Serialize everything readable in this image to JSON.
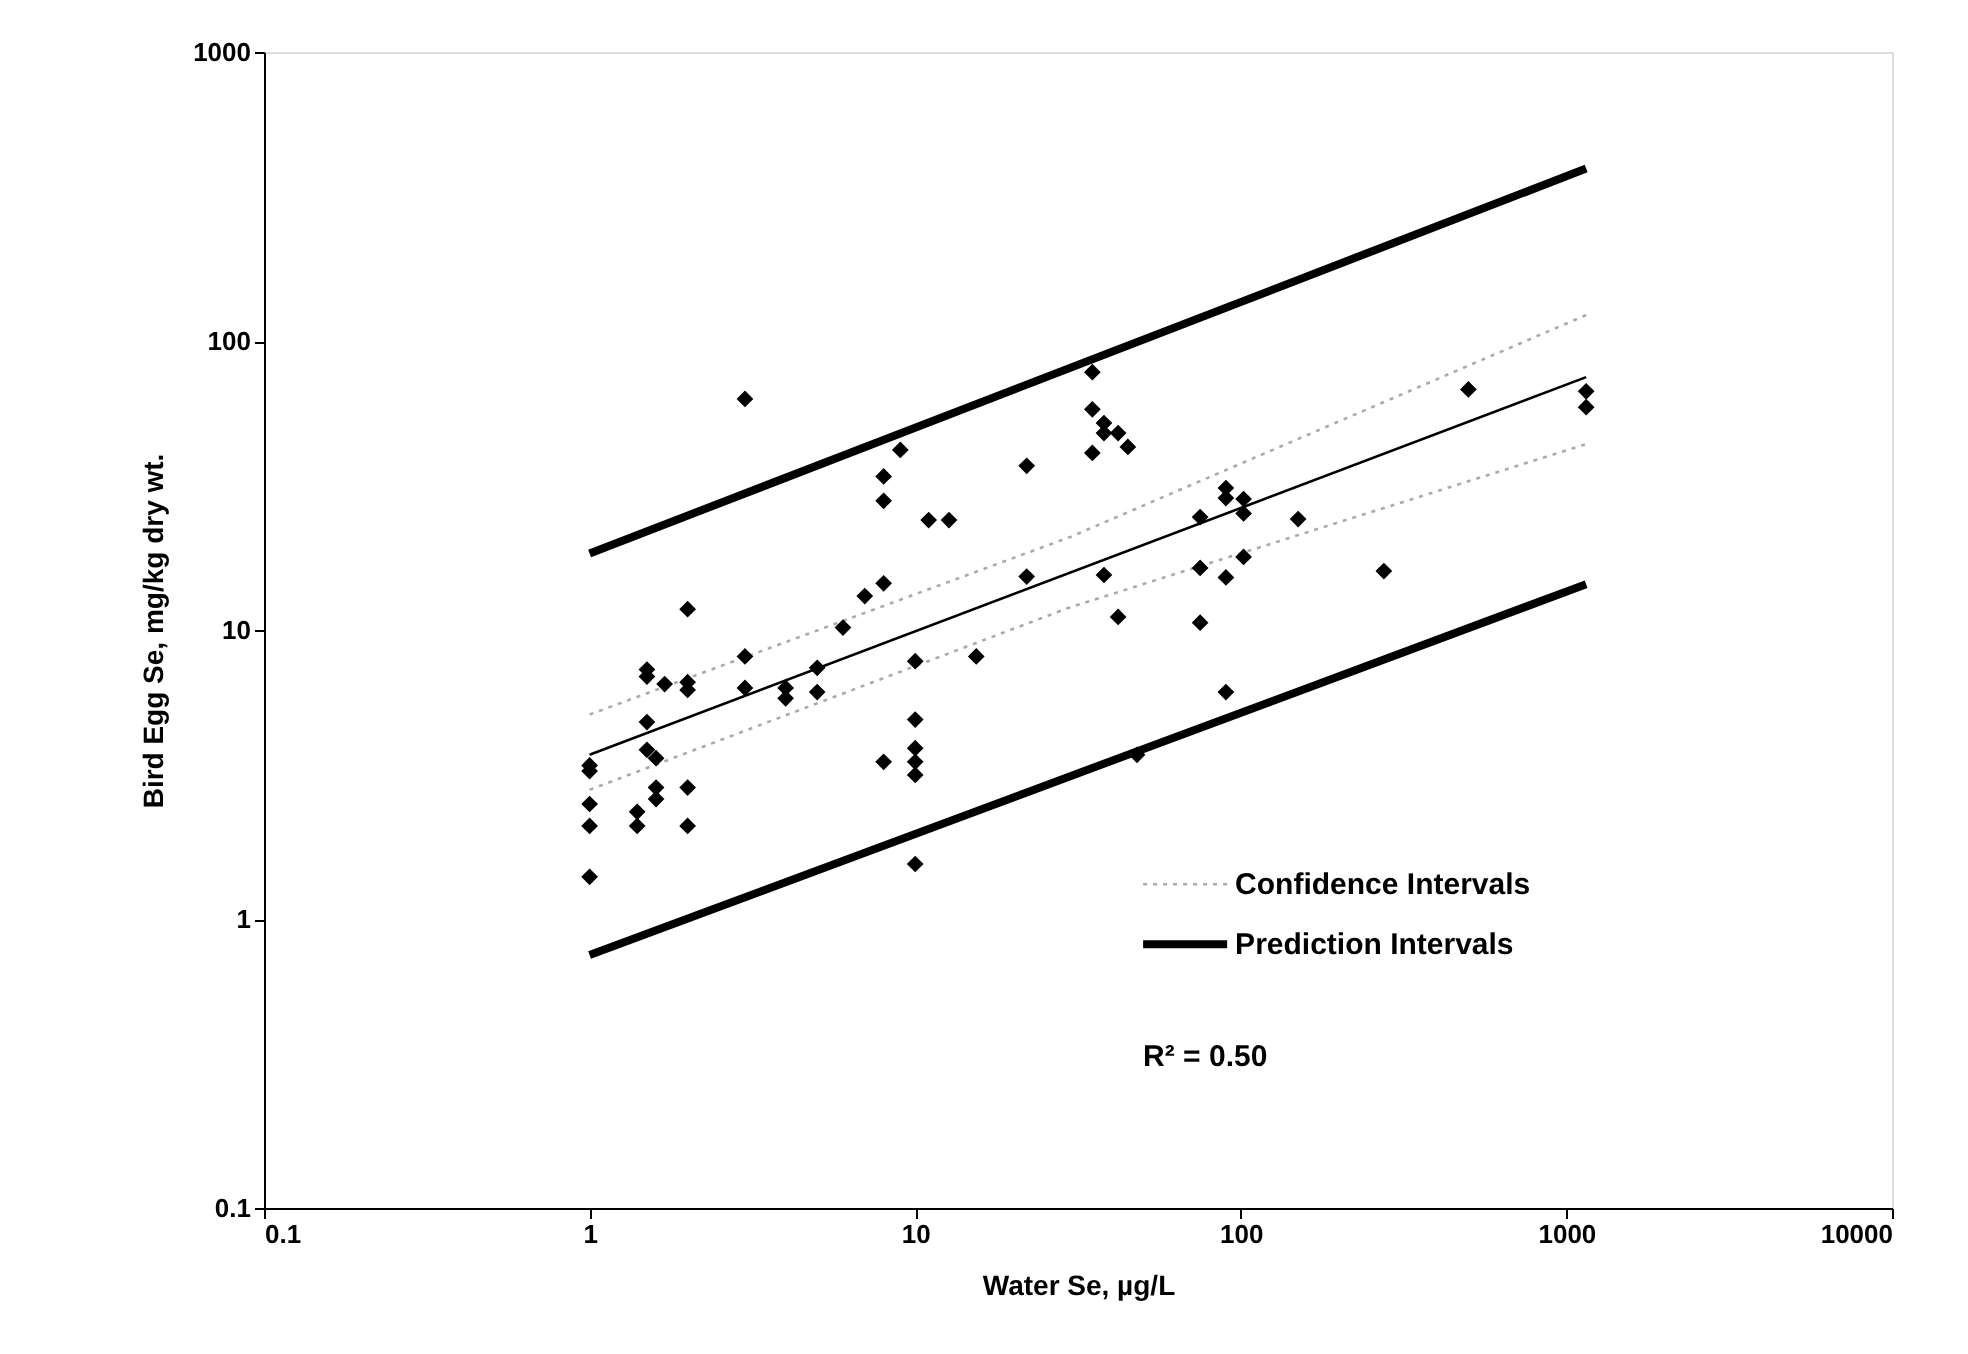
{
  "chart_data": {
    "type": "scatter",
    "xlabel": "Water Se, µg/L",
    "ylabel": "Bird Egg Se, mg/kg dry wt.",
    "log": "xy",
    "grid": false,
    "legend": "bottom right",
    "xlim": [
      0.1,
      10000
    ],
    "ylim": [
      0.1,
      1000
    ],
    "xticks": [
      0.1,
      1,
      10,
      100,
      1000,
      10000
    ],
    "yticks": [
      0.1,
      1,
      10,
      100,
      1000
    ],
    "annotations": [
      "R² = 0.50"
    ],
    "series": [
      {
        "marker": "diamond",
        "color": "#000000",
        "x": [
          1,
          1,
          1,
          1,
          1,
          1.4,
          1.4,
          1.5,
          1.5,
          1.5,
          1.5,
          1.6,
          1.6,
          1.6,
          1.7,
          2,
          2,
          2,
          2,
          2,
          3,
          3,
          3,
          4,
          4,
          5,
          5,
          6,
          7,
          8,
          8,
          8,
          8,
          9,
          10,
          10,
          10,
          10,
          10,
          10,
          11,
          12.7,
          15.4,
          22,
          22,
          35,
          35,
          35,
          38,
          38,
          38,
          42,
          42,
          45,
          48,
          75,
          75,
          75,
          90,
          90,
          90,
          90,
          102,
          102,
          102,
          150,
          275,
          500,
          1150,
          1150
        ],
        "values": [
          3.4,
          3.25,
          2.5,
          2.1,
          1.4,
          2.35,
          2.1,
          7.3,
          6.9,
          4.8,
          3.85,
          3.6,
          2.85,
          2.6,
          6.5,
          11.8,
          6.6,
          6.2,
          2.85,
          2.1,
          63,
          8.1,
          6.3,
          6.3,
          5.8,
          7.4,
          6.1,
          10.2,
          13.1,
          34,
          28,
          14.5,
          3.5,
          42,
          7.8,
          4.9,
          3.9,
          3.5,
          3.15,
          1.55,
          24,
          24,
          8.1,
          37,
          15.3,
          78,
          58,
          41,
          52,
          48,
          15.5,
          48,
          11.1,
          43,
          3.7,
          24.6,
          16.4,
          10.6,
          31,
          28.6,
          15.2,
          6.1,
          28.4,
          25.3,
          17.9,
          24.2,
          16,
          68,
          67,
          59
        ]
      },
      {
        "type": "line",
        "line_style": "solid",
        "color": "#000000",
        "x": [
          1,
          1150
        ],
        "values": [
          3.7,
          75
        ]
      },
      {
        "type": "line",
        "name": "Confidence Intervals",
        "line_style": "dotted",
        "color": "#aaaaaa",
        "x": [
          1,
          30,
          1150
        ],
        "values": [
          5.1,
          21,
          123
        ]
      },
      {
        "type": "line",
        "line_style": "dotted",
        "color": "#aaaaaa",
        "x": [
          1,
          30,
          1150
        ],
        "values": [
          2.8,
          12,
          44
        ]
      },
      {
        "type": "line",
        "name": "Prediction Intervals",
        "line_style": "solid",
        "color": "#000000",
        "x": [
          1,
          1150
        ],
        "values": [
          18.4,
          395
        ]
      },
      {
        "type": "line",
        "line_style": "solid",
        "color": "#000000",
        "x": [
          1,
          1150
        ],
        "values": [
          0.75,
          14.4
        ]
      }
    ]
  }
}
